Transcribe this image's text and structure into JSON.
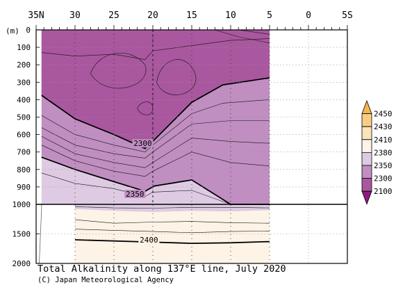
{
  "chart_data": {
    "type": "contour",
    "title": "Total Alkalinity along 137°E line, July 2020",
    "credit": "(C) Japan Meteorological Agency",
    "y_unit_label": "(m)",
    "x_ticks": [
      {
        "lat": 35,
        "label": "35N"
      },
      {
        "lat": 30,
        "label": "30"
      },
      {
        "lat": 25,
        "label": "25"
      },
      {
        "lat": 20,
        "label": "20"
      },
      {
        "lat": 15,
        "label": "15"
      },
      {
        "lat": 10,
        "label": "10"
      },
      {
        "lat": 5,
        "label": "5"
      },
      {
        "lat": 0,
        "label": "0"
      },
      {
        "lat": -5,
        "label": "5S"
      }
    ],
    "x_range": [
      35,
      -5
    ],
    "y_ticks_upper": [
      0,
      100,
      200,
      300,
      400,
      500,
      600,
      700,
      800,
      900,
      1000
    ],
    "y_ticks_lower": [
      1500,
      2000
    ],
    "y_range": [
      0,
      2000
    ],
    "y_break": 1000,
    "data_extent_lat": [
      34.3,
      5
    ],
    "station_lats": [
      30,
      25,
      20,
      15,
      10,
      5
    ],
    "colorbar": {
      "levels": [
        "2450",
        "2430",
        "2410",
        "2380",
        "2350",
        "2300",
        "2100"
      ],
      "colors": [
        "#f6b552",
        "#f9cd86",
        "#fbe4b9",
        "#fdf3e6",
        "#decbe3",
        "#c08ec1",
        "#a9579f",
        "#8d1b82"
      ]
    },
    "fill_colors": {
      "lt2300": "#a9579f",
      "2300_2350": "#c08ec1",
      "2350_2380": "#decbe3",
      "2380_2410": "#fdf3e6"
    },
    "contour_labels": [
      {
        "value": "2300",
        "lat": 21.3,
        "depth": 650
      },
      {
        "value": "2350",
        "lat": 22.3,
        "depth": 940
      },
      {
        "value": "2400",
        "lat": 20.5,
        "depth": 1600
      }
    ],
    "iso_2300": [
      [
        34.3,
        375
      ],
      [
        30,
        510
      ],
      [
        25,
        600
      ],
      [
        21,
        680
      ],
      [
        19.8,
        630
      ],
      [
        15,
        415
      ],
      [
        11,
        315
      ],
      [
        5,
        275
      ]
    ],
    "iso_2350": [
      [
        34.3,
        730
      ],
      [
        30,
        800
      ],
      [
        25,
        870
      ],
      [
        21,
        925
      ],
      [
        19.8,
        895
      ],
      [
        15,
        860
      ],
      [
        10,
        1000
      ],
      [
        5,
        1000
      ]
    ],
    "iso_2380_lower": [
      [
        30,
        1080
      ],
      [
        25,
        1110
      ],
      [
        20,
        1130
      ],
      [
        15,
        1110
      ],
      [
        10,
        1120
      ],
      [
        5,
        1100
      ]
    ],
    "iso_2400": [
      [
        30,
        1600
      ],
      [
        20,
        1640
      ],
      [
        15,
        1660
      ],
      [
        10,
        1650
      ],
      [
        5,
        1630
      ]
    ]
  }
}
